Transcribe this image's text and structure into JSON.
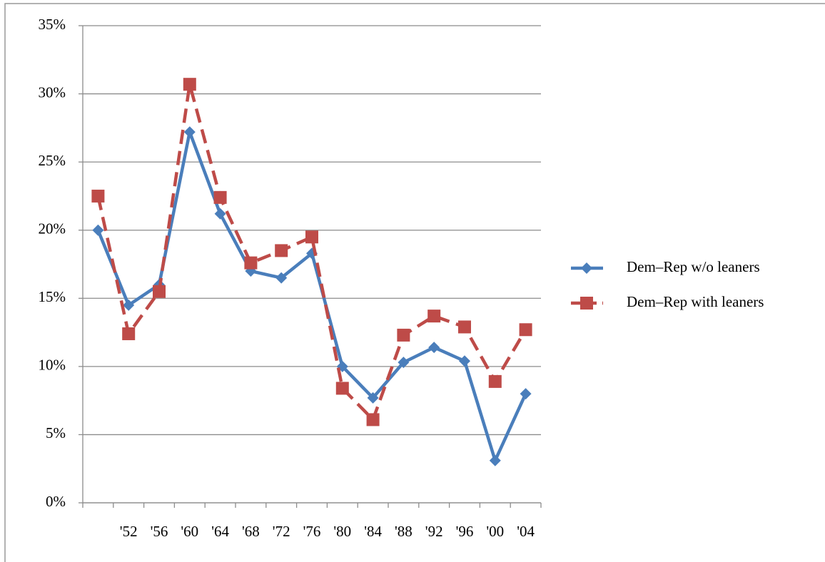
{
  "chart_data": {
    "type": "line",
    "categories": [
      null,
      "'52",
      "'56",
      "'60",
      "'64",
      "'68",
      "'72",
      "'76",
      "'80",
      "'84",
      "'88",
      "'92",
      "'96",
      "'00",
      "'04"
    ],
    "series": [
      {
        "name": "Dem–Rep w/o leaners",
        "color": "#4a7ebb",
        "marker": "diamond",
        "dash": "solid",
        "values": [
          20,
          14.5,
          16,
          27.2,
          21.2,
          17,
          16.5,
          18.3,
          10,
          7.7,
          10.3,
          11.4,
          10.4,
          3.1,
          8
        ]
      },
      {
        "name": "Dem–Rep with leaners",
        "color": "#be4b48",
        "marker": "square",
        "dash": "dashed",
        "values": [
          22.5,
          12.4,
          15.5,
          30.7,
          22.4,
          17.6,
          18.5,
          19.5,
          8.4,
          6.1,
          12.3,
          13.7,
          12.9,
          8.9,
          12.7
        ]
      }
    ],
    "ylim": [
      0,
      35
    ],
    "yticks": [
      {
        "value": 0,
        "label": "0%"
      },
      {
        "value": 5,
        "label": "5%"
      },
      {
        "value": 10,
        "label": "10%"
      },
      {
        "value": 15,
        "label": "15%"
      },
      {
        "value": 20,
        "label": "20%"
      },
      {
        "value": 25,
        "label": "25%"
      },
      {
        "value": 30,
        "label": "30%"
      },
      {
        "value": 35,
        "label": "35%"
      }
    ],
    "grid": true,
    "legend": "right"
  }
}
